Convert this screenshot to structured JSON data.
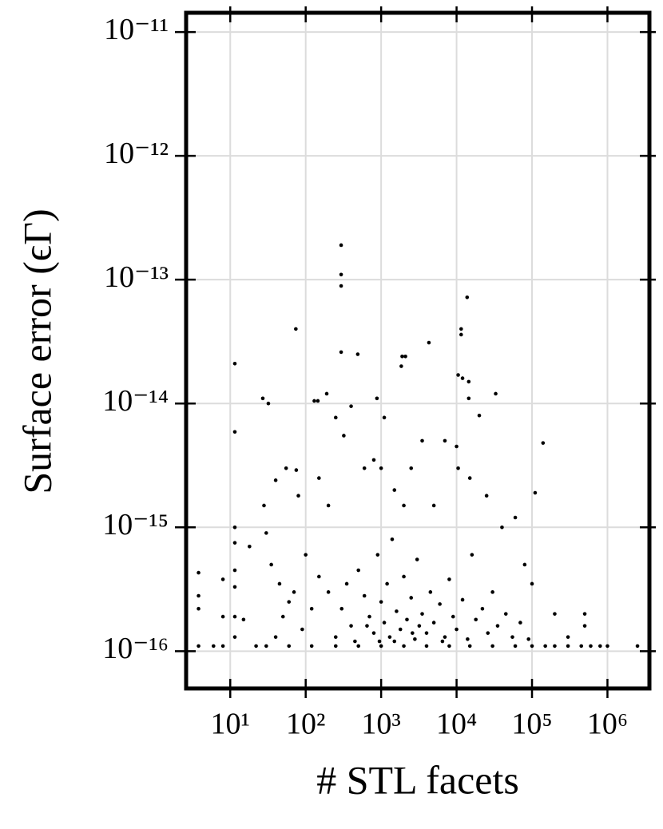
{
  "chart_data": {
    "type": "scatter",
    "xlabel": "# STL facets",
    "ylabel": "Surface error (ϵΓ)",
    "xscale": "log",
    "yscale": "log",
    "grid": true,
    "color": "#000000",
    "xlim": [
      2.6,
      3600000
    ],
    "ylim": [
      5e-17,
      1.43e-11
    ],
    "xticks": [
      {
        "value": 10,
        "label": "10¹"
      },
      {
        "value": 100,
        "label": "10²"
      },
      {
        "value": 1000,
        "label": "10³"
      },
      {
        "value": 10000,
        "label": "10⁴"
      },
      {
        "value": 100000,
        "label": "10⁵"
      },
      {
        "value": 1000000,
        "label": "10⁶"
      }
    ],
    "yticks": [
      {
        "value": 1e-16,
        "label": "10⁻¹⁶"
      },
      {
        "value": 1e-15,
        "label": "10⁻¹⁵"
      },
      {
        "value": 1e-14,
        "label": "10⁻¹⁴"
      },
      {
        "value": 1e-13,
        "label": "10⁻¹³"
      },
      {
        "value": 1e-12,
        "label": "10⁻¹²"
      },
      {
        "value": 1e-11,
        "label": "10⁻¹¹"
      }
    ],
    "x": [
      295,
      295,
      295,
      13800,
      74,
      11500,
      11500,
      4300,
      11.5,
      295,
      490,
      1900,
      2100,
      1850,
      10500,
      12000,
      14500,
      14500,
      27,
      32,
      11.5,
      130,
      145,
      190,
      880,
      140000,
      110000,
      33000,
      20000,
      3.8,
      3.8,
      3.8,
      3.8,
      2500000,
      1000000,
      600000,
      800000,
      450000,
      300000,
      200000,
      150000,
      100000,
      60000,
      30000,
      15000,
      8000,
      4000,
      2000,
      1000,
      500,
      250,
      120,
      60,
      30,
      22,
      6,
      8,
      11.5,
      11.5,
      11.5,
      11.5,
      11.5,
      11.5,
      8,
      8,
      15,
      18,
      28,
      30,
      40,
      55,
      75,
      35,
      45,
      60,
      80,
      100,
      150,
      200,
      250,
      320,
      400,
      600,
      800,
      1000,
      1100,
      1500,
      2000,
      2500,
      3500,
      5000,
      7000,
      10000,
      10500,
      15000,
      25000,
      40000,
      60000,
      80000,
      100000,
      200000,
      500000,
      500000,
      300000,
      150,
      200,
      300,
      400,
      500,
      600,
      700,
      800,
      900,
      1000,
      1100,
      1200,
      1300,
      1400,
      1600,
      1800,
      2000,
      2200,
      2500,
      2800,
      3000,
      3500,
      4000,
      4500,
      5000,
      6000,
      7000,
      8000,
      9000,
      10000,
      12000,
      14000,
      16000,
      18000,
      22000,
      26000,
      30000,
      35000,
      45000,
      55000,
      70000,
      90000,
      120,
      90,
      70,
      50,
      40,
      250,
      350,
      450,
      650,
      950,
      1500,
      3200,
      2600,
      6500
    ],
    "values": [
      1.9e-13,
      1.1e-13,
      8.9e-14,
      7.2e-14,
      4e-14,
      4e-14,
      3.6e-14,
      3.1e-14,
      2.1e-14,
      2.6e-14,
      2.5e-14,
      2.4e-14,
      2.4e-14,
      2e-14,
      1.7e-14,
      1.6e-14,
      1.5e-14,
      1.1e-14,
      1.1e-14,
      1e-14,
      5.9e-15,
      1.05e-14,
      1.05e-14,
      1.2e-14,
      1.1e-14,
      4.8e-15,
      1.9e-15,
      1.2e-14,
      8e-15,
      4.3e-16,
      2.8e-16,
      2.2e-16,
      1.1e-16,
      1.1e-16,
      1.1e-16,
      1.1e-16,
      1.1e-16,
      1.1e-16,
      1.1e-16,
      1.1e-16,
      1.1e-16,
      1.1e-16,
      1.1e-16,
      1.1e-16,
      1.1e-16,
      1.1e-16,
      1.1e-16,
      1.1e-16,
      1.1e-16,
      1.1e-16,
      1.1e-16,
      1.1e-16,
      1.1e-16,
      1.1e-16,
      1.1e-16,
      1.1e-16,
      1.1e-16,
      1e-15,
      7.5e-16,
      4.5e-16,
      3.3e-16,
      1.9e-16,
      1.3e-16,
      3.8e-16,
      1.9e-16,
      1.8e-16,
      7e-16,
      1.5e-15,
      9e-16,
      2.4e-15,
      3e-15,
      2.9e-15,
      5e-16,
      3.5e-16,
      2.5e-16,
      1.8e-15,
      6e-16,
      2.5e-15,
      1.5e-15,
      7.7e-15,
      5.5e-15,
      9.5e-15,
      3e-15,
      3.5e-15,
      3e-15,
      7.7e-15,
      2e-15,
      1.5e-15,
      3e-15,
      5e-15,
      1.5e-15,
      5e-15,
      4.5e-15,
      3e-15,
      2.5e-15,
      1.8e-15,
      1e-15,
      1.2e-15,
      5e-16,
      3.5e-16,
      2e-16,
      2e-16,
      1.6e-16,
      1.3e-16,
      4e-16,
      3e-16,
      2.2e-16,
      1.6e-16,
      4.5e-16,
      2.8e-16,
      1.9e-16,
      1.4e-16,
      6e-16,
      2.5e-16,
      1.7e-16,
      3.5e-16,
      1.3e-16,
      8e-16,
      2.1e-16,
      1.5e-16,
      4e-16,
      1.8e-16,
      2.7e-16,
      1.25e-16,
      5.5e-16,
      2e-16,
      1.4e-16,
      3e-16,
      1.7e-16,
      2.4e-16,
      1.3e-16,
      3.8e-16,
      1.9e-16,
      1.5e-16,
      2.6e-16,
      1.25e-16,
      6e-16,
      1.8e-16,
      2.2e-16,
      1.4e-16,
      3e-16,
      1.6e-16,
      2e-16,
      1.3e-16,
      1.7e-16,
      1.25e-16,
      2.2e-16,
      1.5e-16,
      3e-16,
      1.9e-16,
      1.3e-16,
      1.3e-16,
      3.5e-16,
      1.2e-16,
      1.6e-16,
      1.2e-16,
      1.2e-16,
      1.6e-16,
      1.4e-16,
      1.2e-16
    ]
  }
}
